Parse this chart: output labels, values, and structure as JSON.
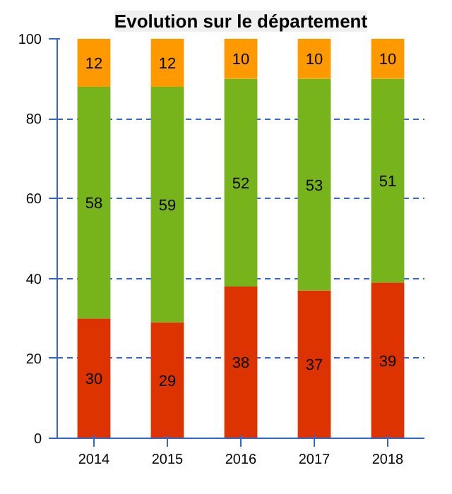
{
  "chart_data": {
    "type": "bar",
    "title": "Evolution sur le département",
    "stacked": true,
    "categories": [
      "2014",
      "2015",
      "2016",
      "2017",
      "2018"
    ],
    "series": [
      {
        "color": "#dd3300",
        "values": [
          30,
          29,
          38,
          37,
          39
        ]
      },
      {
        "color": "#77b31a",
        "values": [
          58,
          59,
          52,
          53,
          51
        ]
      },
      {
        "color": "#ff9900",
        "values": [
          12,
          12,
          10,
          10,
          10
        ]
      }
    ],
    "ylim": [
      0,
      100
    ],
    "yticks": [
      0,
      20,
      40,
      60,
      80,
      100
    ],
    "grid": "y",
    "data_labels": true
  }
}
